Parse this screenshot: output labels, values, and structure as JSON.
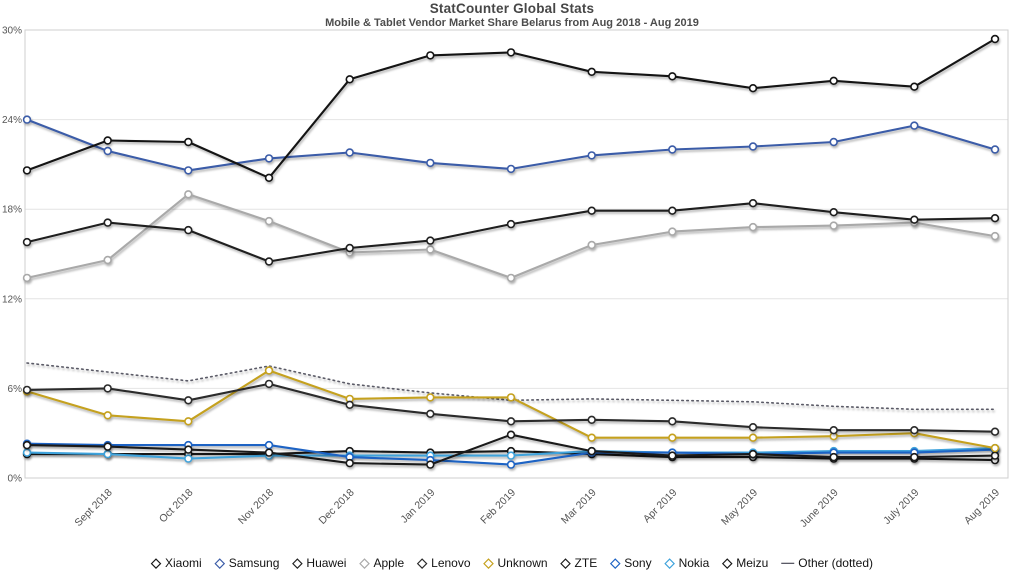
{
  "header": {
    "title": "StatCounter Global Stats",
    "subtitle": "Mobile & Tablet Vendor Market Share Belarus from Aug 2018 - Aug 2019"
  },
  "chart_data": {
    "type": "line",
    "title": "StatCounter Global Stats",
    "subtitle": "Mobile & Tablet Vendor Market Share Belarus from Aug 2018 - Aug 2019",
    "x_labels": [
      "",
      "Sept 2018",
      "Oct 2018",
      "Nov 2018",
      "Dec 2018",
      "Jan 2019",
      "Feb 2019",
      "Mar 2019",
      "Apr 2019",
      "May 2019",
      "June 2019",
      "July 2019",
      "Aug 2019"
    ],
    "y_ticks": [
      "0%",
      "6%",
      "12%",
      "18%",
      "24%",
      "30%"
    ],
    "ylim": [
      0,
      30
    ],
    "y_step": 6,
    "grid": "horizontal",
    "legend_position": "bottom",
    "series": [
      {
        "name": "Xiaomi",
        "color": "#141414",
        "style": "solid",
        "marker": true,
        "values": [
          20.6,
          22.6,
          22.5,
          20.1,
          26.7,
          28.3,
          28.5,
          27.2,
          26.9,
          26.1,
          26.6,
          26.2,
          29.4
        ]
      },
      {
        "name": "Samsung",
        "color": "#3b5ca8",
        "style": "solid",
        "marker": true,
        "values": [
          24.0,
          21.9,
          20.6,
          21.4,
          21.8,
          21.1,
          20.7,
          21.6,
          22.0,
          22.2,
          22.5,
          23.6,
          22.0
        ]
      },
      {
        "name": "Huawei",
        "color": "#1f1f1f",
        "style": "solid",
        "marker": true,
        "values": [
          15.8,
          17.1,
          16.6,
          14.5,
          15.4,
          15.9,
          17.0,
          17.9,
          17.9,
          18.4,
          17.8,
          17.3,
          17.4
        ]
      },
      {
        "name": "Apple",
        "color": "#a9a9a9",
        "style": "solid",
        "marker": true,
        "values": [
          13.4,
          14.6,
          19.0,
          17.2,
          15.1,
          15.3,
          13.4,
          15.6,
          16.5,
          16.8,
          16.9,
          17.1,
          16.2
        ]
      },
      {
        "name": "Lenovo",
        "color": "#2b2b2b",
        "style": "solid",
        "marker": true,
        "values": [
          5.9,
          6.0,
          5.2,
          6.3,
          4.9,
          4.3,
          3.8,
          3.9,
          3.8,
          3.4,
          3.2,
          3.2,
          3.1
        ]
      },
      {
        "name": "Unknown",
        "color": "#c5a11e",
        "style": "solid",
        "marker": true,
        "values": [
          5.8,
          4.2,
          3.8,
          7.2,
          5.3,
          5.4,
          5.4,
          2.7,
          2.7,
          2.7,
          2.8,
          3.0,
          2.0
        ]
      },
      {
        "name": "ZTE",
        "color": "#1a1a1a",
        "style": "solid",
        "marker": true,
        "values": [
          2.2,
          2.1,
          1.9,
          1.7,
          1.0,
          0.9,
          2.9,
          1.8,
          1.5,
          1.6,
          1.4,
          1.4,
          1.5
        ]
      },
      {
        "name": "Sony",
        "color": "#1d63c4",
        "style": "solid",
        "marker": true,
        "values": [
          2.3,
          2.2,
          2.2,
          2.2,
          1.4,
          1.2,
          0.9,
          1.7,
          1.7,
          1.6,
          1.7,
          1.7,
          1.9
        ]
      },
      {
        "name": "Nokia",
        "color": "#3fa3dc",
        "style": "solid",
        "marker": true,
        "values": [
          1.7,
          1.6,
          1.3,
          1.5,
          1.5,
          1.5,
          1.5,
          1.8,
          1.7,
          1.7,
          1.8,
          1.8,
          2.0
        ]
      },
      {
        "name": "Meizu",
        "color": "#161616",
        "style": "solid",
        "marker": true,
        "values": [
          1.6,
          1.6,
          1.6,
          1.6,
          1.8,
          1.7,
          1.8,
          1.6,
          1.4,
          1.4,
          1.3,
          1.3,
          1.2
        ]
      },
      {
        "name": "Other (dotted)",
        "color": "#5a5a66",
        "style": "dotted",
        "marker": false,
        "values": [
          7.7,
          7.1,
          6.5,
          7.5,
          6.3,
          5.7,
          5.2,
          5.3,
          5.2,
          5.1,
          4.8,
          4.6,
          4.6
        ]
      }
    ]
  }
}
